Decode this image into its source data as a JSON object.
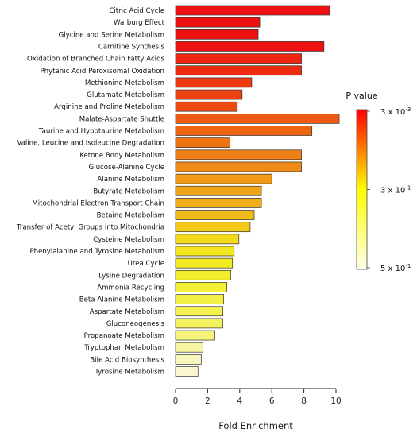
{
  "chart_data": {
    "type": "bar",
    "orientation": "horizontal",
    "xlabel": "Fold Enrichment",
    "xlim": [
      0,
      10
    ],
    "xticks": [
      "0",
      "2",
      "4",
      "6",
      "8",
      "10"
    ],
    "grid": false,
    "legend_position": "right",
    "legend": {
      "title": "P value",
      "labels": [
        {
          "mantissa": "3 x 10",
          "exponent": "-3"
        },
        {
          "mantissa": "3 x 10",
          "exponent": "-1"
        },
        {
          "mantissa": "5 x 10",
          "exponent": "-1"
        }
      ],
      "colors": [
        "#ff0000",
        "#ffff00",
        "#ffffe8"
      ]
    },
    "categories": [
      "Citric Acid Cycle",
      "Warburg Effect",
      "Glycine and Serine Metabolism",
      "Carnitine Synthesis",
      "Oxidation of Branched Chain Fatty Acids",
      "Phytanic Acid Peroxisomal Oxidation",
      "Methionine Metabolism",
      "Glutamate Metabolism",
      "Arginine and Proline Metabolism",
      "Malate-Aspartate Shuttle",
      "Taurine and Hypotaurine Metabolism",
      "Valine, Leucine and Isoleucine Degradation",
      "Ketone Body Metabolism",
      "Glucose-Alanine Cycle",
      "Alanine Metabolism",
      "Butyrate Metabolism",
      "Mitochondrial Electron Transport Chain",
      "Betaine Metabolism",
      "Transfer of Acetyl Groups into Mitochondria",
      "Cysteine Metabolism",
      "Phenylalanine and Tyrosine Metabolism",
      "Urea Cycle",
      "Lysine Degradation",
      "Ammonia Recycling",
      "Beta-Alanine Metabolism",
      "Aspartate Metabolism",
      "Gluconeogenesis",
      "Propanoate Metabolism",
      "Tryptophan Metabolism",
      "Bile Acid Biosynthesis",
      "Tyrosine Metabolism"
    ],
    "values": [
      9.6,
      5.25,
      5.15,
      9.25,
      7.85,
      7.85,
      4.75,
      4.15,
      3.85,
      10.2,
      8.5,
      3.4,
      7.85,
      7.85,
      6.0,
      5.35,
      5.35,
      4.9,
      4.65,
      3.95,
      3.65,
      3.55,
      3.45,
      3.2,
      3.0,
      2.95,
      2.95,
      2.45,
      1.7,
      1.6,
      1.4
    ],
    "bar_colors": [
      "#ee1111",
      "#ee1111",
      "#ee1111",
      "#ee1111",
      "#ee2611",
      "#ee2b11",
      "#ee3a11",
      "#ee4011",
      "#ee4a11",
      "#ee5a11",
      "#ee6411",
      "#ee7411",
      "#f08017",
      "#f08b17",
      "#f09a17",
      "#f0a418",
      "#f0ae18",
      "#f0bb18",
      "#f2c81a",
      "#f2d91c",
      "#f2e41e",
      "#f2ea22",
      "#f2ed2b",
      "#f2ef35",
      "#f2f042",
      "#f2f150",
      "#f2f160",
      "#f4f37a",
      "#f6f5a2",
      "#f7f6bc",
      "#f8f7d2"
    ]
  }
}
